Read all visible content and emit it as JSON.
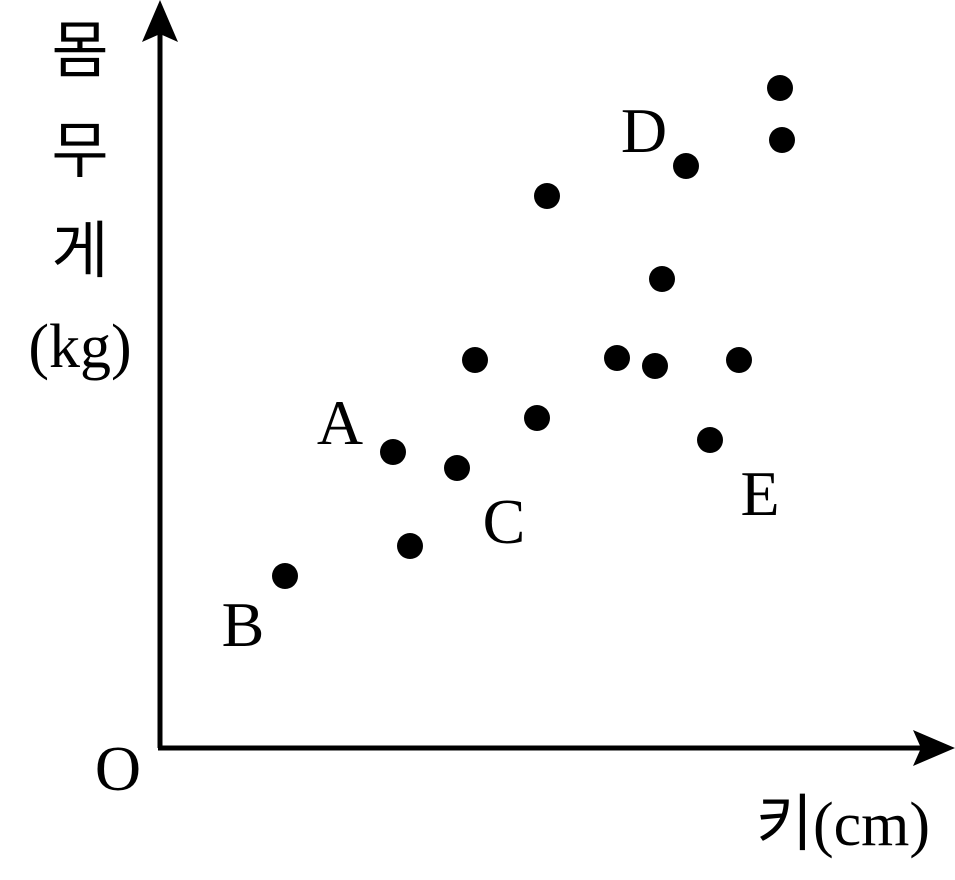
{
  "chart_data": {
    "type": "scatter",
    "y_label_lines": [
      "몸",
      "무",
      "게",
      "(kg)"
    ],
    "x_label": "키(cm)",
    "origin_label": "O",
    "xlim": [
      0,
      79
    ],
    "ylim": [
      0,
      74
    ],
    "color": "#000000",
    "series": [
      {
        "x": [
          23.3,
          12.5,
          29.7,
          52.6,
          55.0,
          25.0,
          31.5,
          37.7,
          38.7,
          45.7,
          49.5,
          50.2,
          57.9,
          62.0,
          62.2
        ],
        "values": [
          29.6,
          17.2,
          28.0,
          58.2,
          30.8,
          20.2,
          38.8,
          33.0,
          55.2,
          39.0,
          38.2,
          46.9,
          38.8,
          66.0,
          60.8
        ],
        "point_labels": [
          "A",
          "B",
          "C",
          "D",
          "E",
          null,
          null,
          null,
          null,
          null,
          null,
          null,
          null,
          null,
          null
        ]
      }
    ]
  }
}
